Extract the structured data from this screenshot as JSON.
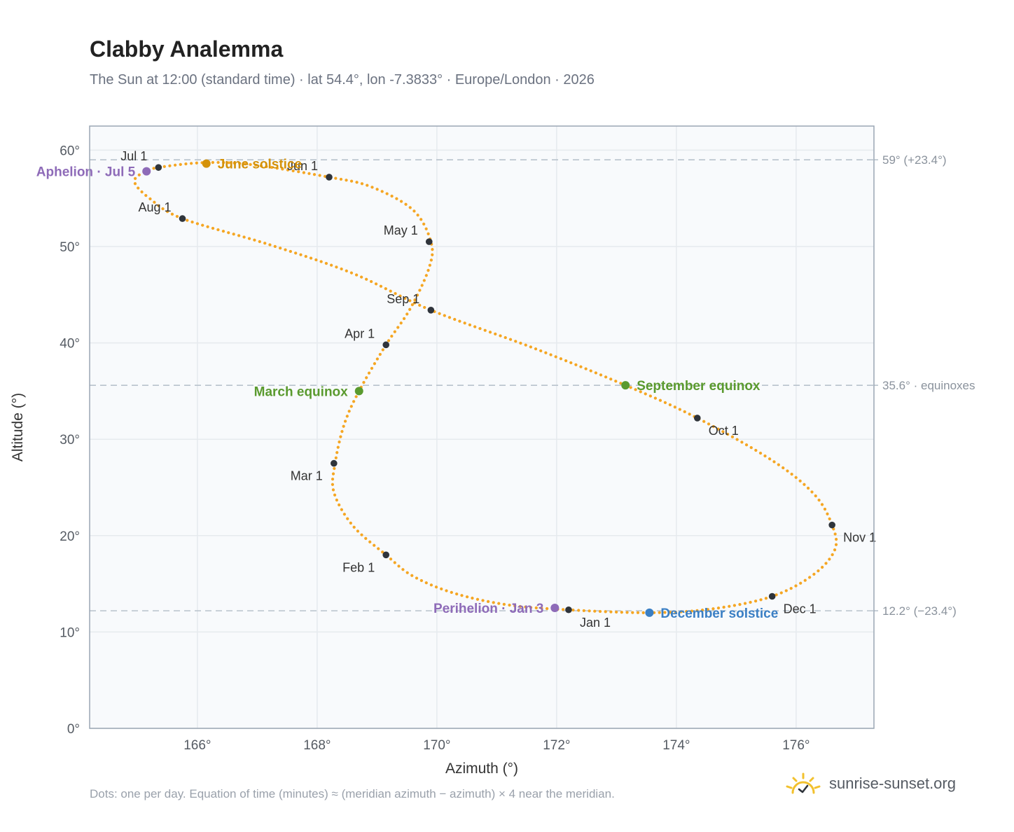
{
  "header": {
    "title": "Clabby Analemma",
    "subtitle": "The Sun at 12:00 (standard time) · lat 54.4°, lon -7.3833° · Europe/London · 2026"
  },
  "footer": {
    "note": "Dots: one per day. Equation of time (minutes) ≈ (meridian azimuth − azimuth) × 4 near the meridian.",
    "brand": "sunrise-sunset.org"
  },
  "colors": {
    "path": "#f5a623",
    "month_marker": "#2f343b",
    "solstice_june": "#d4920a",
    "solstice_december": "#3b7fc4",
    "equinox": "#5a9a2e",
    "apsis": "#8e6bb8",
    "reference_line": "#b8c2cc",
    "plot_bg": "#f8fafc",
    "grid": "#e6eaee"
  },
  "chart_data": {
    "type": "scatter",
    "xlabel": "Azimuth (°)",
    "ylabel": "Altitude (°)",
    "xlim": [
      164.2,
      177.3
    ],
    "ylim": [
      0,
      62.5
    ],
    "xticks": [
      166,
      168,
      170,
      172,
      174,
      176
    ],
    "xtick_labels": [
      "166°",
      "168°",
      "170°",
      "172°",
      "174°",
      "176°"
    ],
    "yticks": [
      0,
      10,
      20,
      30,
      40,
      50,
      60
    ],
    "ytick_labels": [
      "0°",
      "10°",
      "20°",
      "30°",
      "40°",
      "50°",
      "60°"
    ],
    "grid": true,
    "reference_lines": [
      {
        "y": 59.0,
        "label": "59° (+23.4°)"
      },
      {
        "y": 35.6,
        "label": "35.6° · equinoxes"
      },
      {
        "y": 12.2,
        "label": "12.2° (−23.4°)"
      }
    ],
    "path_points": [
      [
        172.2,
        12.3
      ],
      [
        171.2,
        12.8
      ],
      [
        170.3,
        14.0
      ],
      [
        169.6,
        15.8
      ],
      [
        169.15,
        18.0
      ],
      [
        168.6,
        21.0
      ],
      [
        168.28,
        24.5
      ],
      [
        168.3,
        27.5
      ],
      [
        168.45,
        31.5
      ],
      [
        168.7,
        35.0
      ],
      [
        169.15,
        39.8
      ],
      [
        169.55,
        43.5
      ],
      [
        169.87,
        47.8
      ],
      [
        169.9,
        50.5
      ],
      [
        169.6,
        53.8
      ],
      [
        168.9,
        56.2
      ],
      [
        168.2,
        57.2
      ],
      [
        166.9,
        58.5
      ],
      [
        166.1,
        58.7
      ],
      [
        165.35,
        58.2
      ],
      [
        165.1,
        57.7
      ],
      [
        164.95,
        56.7
      ],
      [
        165.2,
        55.0
      ],
      [
        165.75,
        52.9
      ],
      [
        167.2,
        50.2
      ],
      [
        168.6,
        47.2
      ],
      [
        169.9,
        43.4
      ],
      [
        171.6,
        39.5
      ],
      [
        173.15,
        35.6
      ],
      [
        174.35,
        32.2
      ],
      [
        175.6,
        27.8
      ],
      [
        176.3,
        24.3
      ],
      [
        176.6,
        21.1
      ],
      [
        176.65,
        18.6
      ],
      [
        176.3,
        16.0
      ],
      [
        175.6,
        13.7
      ],
      [
        174.6,
        12.4
      ],
      [
        173.55,
        12.0
      ],
      [
        172.2,
        12.3
      ]
    ],
    "month_markers": [
      {
        "label": "Jan 1",
        "x": 172.2,
        "y": 12.3,
        "pos": "below-right"
      },
      {
        "label": "Feb 1",
        "x": 169.15,
        "y": 18.0,
        "pos": "below-left"
      },
      {
        "label": "Mar 1",
        "x": 168.28,
        "y": 27.5,
        "pos": "below-left"
      },
      {
        "label": "Apr 1",
        "x": 169.15,
        "y": 39.8,
        "pos": "above-left"
      },
      {
        "label": "May 1",
        "x": 169.87,
        "y": 50.5,
        "pos": "above-left"
      },
      {
        "label": "Jun 1",
        "x": 168.2,
        "y": 57.2,
        "pos": "above-left"
      },
      {
        "label": "Jul 1",
        "x": 165.35,
        "y": 58.2,
        "pos": "above-left"
      },
      {
        "label": "Aug 1",
        "x": 165.75,
        "y": 52.9,
        "pos": "above-left"
      },
      {
        "label": "Sep 1",
        "x": 169.9,
        "y": 43.4,
        "pos": "above-left"
      },
      {
        "label": "Oct 1",
        "x": 174.35,
        "y": 32.2,
        "pos": "below-right"
      },
      {
        "label": "Nov 1",
        "x": 176.6,
        "y": 21.1,
        "pos": "below-right"
      },
      {
        "label": "Dec 1",
        "x": 175.6,
        "y": 13.7,
        "pos": "below-right"
      }
    ],
    "events": [
      {
        "label": "June solstice",
        "x": 166.15,
        "y": 58.6,
        "kind": "solstice_june",
        "pos": "right"
      },
      {
        "label": "December solstice",
        "x": 173.55,
        "y": 12.0,
        "kind": "solstice_december",
        "pos": "right"
      },
      {
        "label": "March equinox",
        "x": 168.7,
        "y": 35.0,
        "kind": "equinox",
        "pos": "left"
      },
      {
        "label": "September equinox",
        "x": 173.15,
        "y": 35.6,
        "kind": "equinox",
        "pos": "right"
      },
      {
        "label": "Aphelion · Jul 5",
        "x": 165.15,
        "y": 57.8,
        "kind": "apsis",
        "pos": "left"
      },
      {
        "label": "Perihelion · Jan 3",
        "x": 171.97,
        "y": 12.5,
        "kind": "apsis",
        "pos": "left"
      }
    ]
  }
}
